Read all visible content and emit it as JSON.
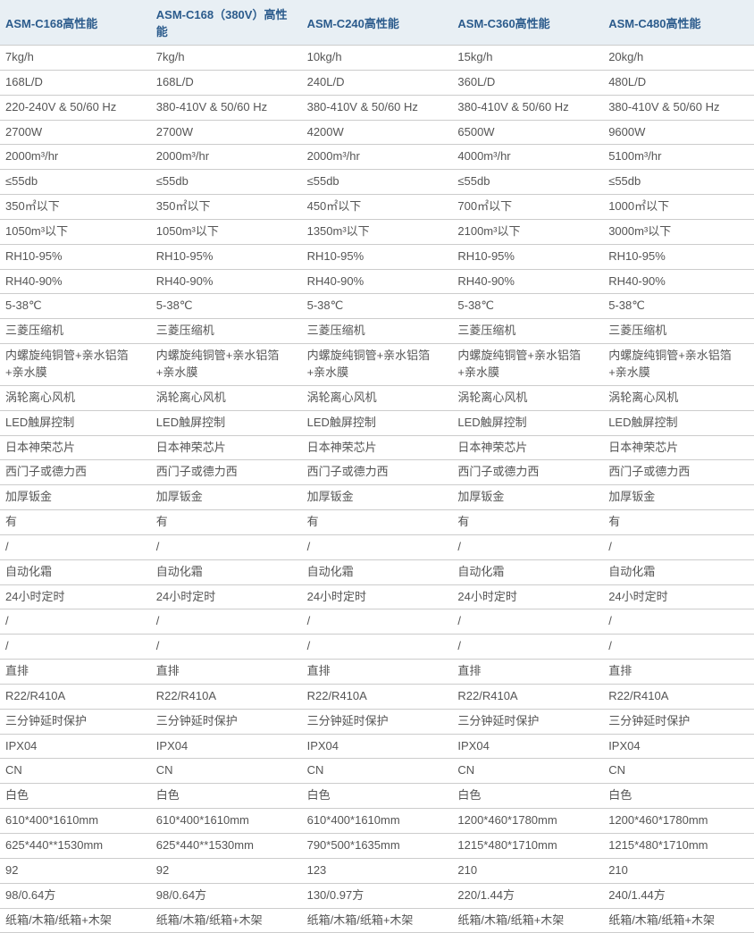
{
  "table": {
    "columns": [
      "ASM-C168高性能",
      "ASM-C168（380V）高性能",
      "ASM-C240高性能",
      "ASM-C360高性能",
      "ASM-C480高性能"
    ],
    "rows": [
      [
        "7kg/h",
        "7kg/h",
        "10kg/h",
        "15kg/h",
        "20kg/h"
      ],
      [
        "168L/D",
        "168L/D",
        "240L/D",
        "360L/D",
        "480L/D"
      ],
      [
        "220-240V & 50/60 Hz",
        "380-410V & 50/60 Hz",
        "380-410V & 50/60 Hz",
        "380-410V & 50/60 Hz",
        "380-410V & 50/60 Hz"
      ],
      [
        "2700W",
        "2700W",
        "4200W",
        "6500W",
        "9600W"
      ],
      [
        "2000m³/hr",
        "2000m³/hr",
        "2000m³/hr",
        "4000m³/hr",
        "5100m³/hr"
      ],
      [
        "≤55db",
        "≤55db",
        "≤55db",
        "≤55db",
        "≤55db"
      ],
      [
        "350㎡以下",
        "350㎡以下",
        "450㎡以下",
        "700㎡以下",
        "1000㎡以下"
      ],
      [
        "1050m³以下",
        "1050m³以下",
        "1350m³以下",
        "2100m³以下",
        "3000m³以下"
      ],
      [
        "RH10-95%",
        "RH10-95%",
        "RH10-95%",
        "RH10-95%",
        "RH10-95%"
      ],
      [
        "RH40-90%",
        "RH40-90%",
        "RH40-90%",
        "RH40-90%",
        "RH40-90%"
      ],
      [
        "5-38℃",
        "5-38℃",
        "5-38℃",
        "5-38℃",
        "5-38℃"
      ],
      [
        "三菱压缩机",
        "三菱压缩机",
        "三菱压缩机",
        "三菱压缩机",
        "三菱压缩机"
      ],
      [
        "内螺旋纯铜管+亲水铝箔+亲水膜",
        "内螺旋纯铜管+亲水铝箔+亲水膜",
        "内螺旋纯铜管+亲水铝箔+亲水膜",
        "内螺旋纯铜管+亲水铝箔+亲水膜",
        "内螺旋纯铜管+亲水铝箔+亲水膜"
      ],
      [
        "涡轮离心风机",
        "涡轮离心风机",
        "涡轮离心风机",
        "涡轮离心风机",
        "涡轮离心风机"
      ],
      [
        "LED触屏控制",
        "LED触屏控制",
        "LED触屏控制",
        "LED触屏控制",
        "LED触屏控制"
      ],
      [
        "日本神荣芯片",
        "日本神荣芯片",
        "日本神荣芯片",
        "日本神荣芯片",
        "日本神荣芯片"
      ],
      [
        "西门子或德力西",
        "西门子或德力西",
        "西门子或德力西",
        "西门子或德力西",
        "西门子或德力西"
      ],
      [
        "加厚钣金",
        "加厚钣金",
        "加厚钣金",
        "加厚钣金",
        "加厚钣金"
      ],
      [
        "有",
        "有",
        "有",
        "有",
        "有"
      ],
      [
        "/",
        "/",
        "/",
        "/",
        "/"
      ],
      [
        "自动化霜",
        "自动化霜",
        "自动化霜",
        "自动化霜",
        "自动化霜"
      ],
      [
        "24小时定时",
        "24小时定时",
        "24小时定时",
        "24小时定时",
        "24小时定时"
      ],
      [
        "/",
        "/",
        "/",
        "/",
        "/"
      ],
      [
        "/",
        "/",
        "/",
        "/",
        "/"
      ],
      [
        "直排",
        "直排",
        "直排",
        "直排",
        "直排"
      ],
      [
        "R22/R410A",
        "R22/R410A",
        "R22/R410A",
        "R22/R410A",
        "R22/R410A"
      ],
      [
        "三分钟延时保护",
        "三分钟延时保护",
        "三分钟延时保护",
        "三分钟延时保护",
        "三分钟延时保护"
      ],
      [
        "IPX04",
        "IPX04",
        "IPX04",
        "IPX04",
        "IPX04"
      ],
      [
        "CN",
        "CN",
        "CN",
        "CN",
        "CN"
      ],
      [
        "白色",
        "白色",
        "白色",
        "白色",
        "白色"
      ],
      [
        "610*400*1610mm",
        "610*400*1610mm",
        "610*400*1610mm",
        "1200*460*1780mm",
        "1200*460*1780mm"
      ],
      [
        "625*440**1530mm",
        "625*440**1530mm",
        "790*500*1635mm",
        "1215*480*1710mm",
        "1215*480*1710mm"
      ],
      [
        "92",
        "92",
        "123",
        "210",
        "210"
      ],
      [
        "98/0.64方",
        "98/0.64方",
        "130/0.97方",
        "220/1.44方",
        "240/1.44方"
      ],
      [
        "纸箱/木箱/纸箱+木架",
        "纸箱/木箱/纸箱+木架",
        "纸箱/木箱/纸箱+木架",
        "纸箱/木箱/纸箱+木架",
        "纸箱/木箱/纸箱+木架"
      ]
    ],
    "header_bg": "#e8eff4",
    "header_color": "#2b5b8c",
    "cell_color": "#555555",
    "border_color": "#cccccc"
  }
}
